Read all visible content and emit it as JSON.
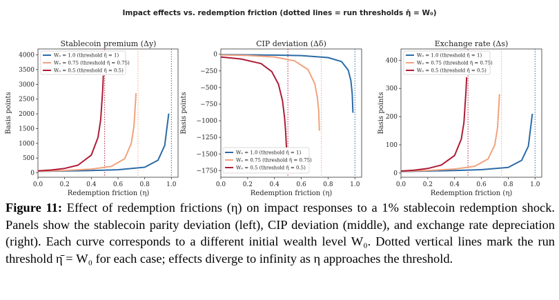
{
  "figure": {
    "suptitle": "Impact effects vs. redemption friction (dotted lines = run thresholds η̄ = W₀)",
    "colors": {
      "w1": "#2b6aa6",
      "w075": "#f1a27d",
      "w05": "#ad1b36"
    },
    "panels": [
      {
        "title": "Stablecoin premium (Δy)",
        "xlabel": "Redemption friction (η)",
        "ylabel": "Basis points",
        "xticks": [
          "0.0",
          "0.2",
          "0.4",
          "0.6",
          "0.8",
          "1.0"
        ],
        "yticks": [
          "0",
          "500",
          "1000",
          "1500",
          "2000",
          "2500",
          "3000",
          "3500",
          "4000"
        ],
        "legend": [
          "W₀ = 1.0 (threshold η̄ = 1)",
          "W₀ = 0.75 (threshold η̄ = 0.75)",
          "W₀ = 0.5 (threshold η̄ = 0.5)"
        ]
      },
      {
        "title": "CIP deviation (Δδ)",
        "xlabel": "Redemption friction (η)",
        "ylabel": "Basis points",
        "xticks": [
          "0.0",
          "0.2",
          "0.4",
          "0.6",
          "0.8",
          "1.0"
        ],
        "yticks": [
          "0",
          "−250",
          "−500",
          "−750",
          "−1000",
          "−1250",
          "−1500",
          "−1750"
        ],
        "legend": [
          "W₀ = 1.0 (threshold η̄ = 1)",
          "W₀ = 0.75 (threshold η̄ = 0.75)",
          "W₀ = 0.5 (threshold η̄ = 0.5)"
        ]
      },
      {
        "title": "Exchange rate (Δs)",
        "xlabel": "Redemption friction (η)",
        "ylabel": "Basis points",
        "xticks": [
          "0.0",
          "0.2",
          "0.4",
          "0.6",
          "0.8",
          "1.0"
        ],
        "yticks": [
          "0",
          "100",
          "200",
          "300",
          "400"
        ],
        "legend": [
          "W₀ = 1.0 (threshold η̄ = 1)",
          "W₀ = 0.75 (threshold η̄ = 0.75)",
          "W₀ = 0.5 (threshold η̄ = 0.5)"
        ]
      }
    ]
  },
  "chart_data": [
    {
      "type": "line",
      "title": "Stablecoin premium (Δy)",
      "xlabel": "Redemption friction (η)",
      "ylabel": "Basis points",
      "xlim": [
        0,
        1.05
      ],
      "ylim": [
        -150,
        4200
      ],
      "thresholds": [
        1.0,
        0.75,
        0.5
      ],
      "series": [
        {
          "name": "W₀ = 1.0 (threshold η̄ = 1)",
          "key": "w1",
          "x": [
            0,
            0.2,
            0.4,
            0.6,
            0.8,
            0.9,
            0.95,
            0.98
          ],
          "y": [
            50,
            62,
            78,
            105,
            190,
            430,
            930,
            2010
          ]
        },
        {
          "name": "W₀ = 0.75 (threshold η̄ = 0.75)",
          "key": "w075",
          "x": [
            0,
            0.2,
            0.4,
            0.55,
            0.65,
            0.7,
            0.72,
            0.735
          ],
          "y": [
            55,
            80,
            125,
            220,
            480,
            1000,
            1600,
            2700
          ]
        },
        {
          "name": "W₀ = 0.5 (threshold η̄ = 0.5)",
          "key": "w05",
          "x": [
            0,
            0.1,
            0.2,
            0.3,
            0.4,
            0.45,
            0.47,
            0.485,
            0.49
          ],
          "y": [
            65,
            95,
            150,
            260,
            600,
            1200,
            1800,
            2800,
            3300
          ]
        }
      ]
    },
    {
      "type": "line",
      "title": "CIP deviation (Δδ)",
      "xlabel": "Redemption friction (η)",
      "ylabel": "Basis points",
      "xlim": [
        0,
        1.05
      ],
      "ylim": [
        -1850,
        80
      ],
      "thresholds": [
        1.0,
        0.75,
        0.5
      ],
      "series": [
        {
          "name": "W₀ = 1.0 (threshold η̄ = 1)",
          "key": "w1",
          "x": [
            0,
            0.2,
            0.4,
            0.6,
            0.8,
            0.9,
            0.95,
            0.97,
            0.98,
            0.985
          ],
          "y": [
            -5,
            -8,
            -12,
            -20,
            -50,
            -110,
            -240,
            -400,
            -600,
            -880
          ]
        },
        {
          "name": "W₀ = 0.75 (threshold η̄ = 0.75)",
          "key": "w075",
          "x": [
            0,
            0.2,
            0.4,
            0.55,
            0.65,
            0.7,
            0.72,
            0.73,
            0.735
          ],
          "y": [
            -10,
            -18,
            -40,
            -100,
            -230,
            -440,
            -650,
            -850,
            -1150
          ]
        },
        {
          "name": "W₀ = 0.5 (threshold η̄ = 0.5)",
          "key": "w05",
          "x": [
            0,
            0.15,
            0.3,
            0.38,
            0.43,
            0.46,
            0.475,
            0.483,
            0.488,
            0.49
          ],
          "y": [
            -40,
            -70,
            -140,
            -260,
            -450,
            -700,
            -950,
            -1150,
            -1350,
            -1420
          ]
        }
      ]
    },
    {
      "type": "line",
      "title": "Exchange rate (Δs)",
      "xlabel": "Redemption friction (η)",
      "ylabel": "Basis points",
      "xlim": [
        0,
        1.05
      ],
      "ylim": [
        -15,
        440
      ],
      "thresholds": [
        1.0,
        0.75,
        0.5
      ],
      "series": [
        {
          "name": "W₀ = 1.0 (threshold η̄ = 1)",
          "key": "w1",
          "x": [
            0,
            0.2,
            0.4,
            0.6,
            0.8,
            0.9,
            0.95,
            0.98
          ],
          "y": [
            5,
            7,
            9,
            12,
            20,
            45,
            95,
            210
          ]
        },
        {
          "name": "W₀ = 0.75 (threshold η̄ = 0.75)",
          "key": "w075",
          "x": [
            0,
            0.2,
            0.4,
            0.55,
            0.65,
            0.7,
            0.72,
            0.735
          ],
          "y": [
            6,
            9,
            14,
            24,
            50,
            100,
            160,
            280
          ]
        },
        {
          "name": "W₀ = 0.5 (threshold η̄ = 0.5)",
          "key": "w05",
          "x": [
            0,
            0.1,
            0.2,
            0.3,
            0.4,
            0.45,
            0.47,
            0.485,
            0.49
          ],
          "y": [
            7,
            10,
            16,
            28,
            62,
            120,
            180,
            290,
            340
          ]
        }
      ]
    }
  ],
  "caption": {
    "label": "Figure 11:",
    "text": " Effect of redemption frictions (η) on impact responses to a 1% stablecoin redemption shock. Panels show the stablecoin parity deviation (left), CIP deviation (middle), and exchange rate depreciation (right). Each curve corresponds to a different initial wealth level W₀. Dotted vertical lines mark the run threshold η̄ = W₀ for each case; effects diverge to infinity as η approaches the threshold."
  }
}
